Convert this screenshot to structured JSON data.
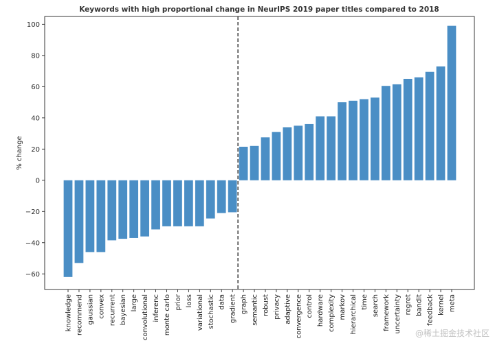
{
  "chart_data": {
    "type": "bar",
    "title": "Keywords with high proportional change in NeurIPS 2019 paper titles compared to 2018",
    "xlabel": "",
    "ylabel": "% change",
    "ylim": [
      -70,
      105
    ],
    "yticks": [
      -60,
      -40,
      -20,
      0,
      20,
      40,
      60,
      80,
      100
    ],
    "ytick_labels": [
      "−60",
      "−40",
      "−20",
      "0",
      "20",
      "40",
      "60",
      "80",
      "100"
    ],
    "bar_color": "#4a8ec5",
    "divider": {
      "between": [
        "gradient",
        "graph"
      ],
      "style": "dashed",
      "color": "#111111"
    },
    "categories": [
      "knowledge",
      "recommend",
      "gaussian",
      "convex",
      "recurrent",
      "bayesian",
      "large",
      "convolutional",
      "inferenc",
      "monte carlo",
      "prior",
      "loss",
      "variational",
      "stochastic",
      "data",
      "gradient",
      "graph",
      "semantic",
      "robust",
      "privacy",
      "adaptive",
      "convergence",
      "control",
      "hardware",
      "complexity",
      "markov",
      "hierarchical",
      "time",
      "search",
      "framework",
      "uncertainty",
      "regret",
      "bandit",
      "feedback",
      "kernel",
      "meta"
    ],
    "values": [
      -62,
      -53,
      -46,
      -46,
      -38.5,
      -37.5,
      -37,
      -36,
      -31.5,
      -29.5,
      -29.5,
      -29.5,
      -29.5,
      -24.5,
      -21,
      -20.5,
      21.5,
      22,
      27.5,
      31,
      34,
      35,
      36,
      41,
      41,
      50,
      51,
      52,
      53,
      60.5,
      61.5,
      65,
      66,
      69.5,
      73,
      99
    ]
  },
  "watermark": "@稀土掘金技术社区"
}
